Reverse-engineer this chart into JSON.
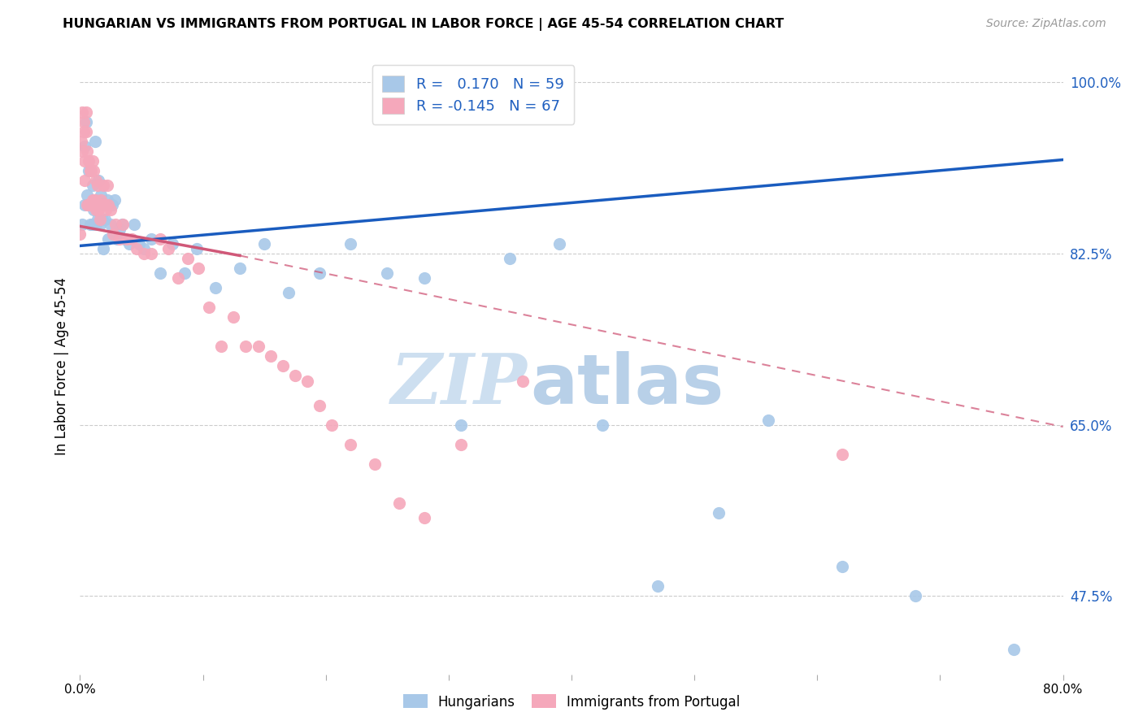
{
  "title": "HUNGARIAN VS IMMIGRANTS FROM PORTUGAL IN LABOR FORCE | AGE 45-54 CORRELATION CHART",
  "source": "Source: ZipAtlas.com",
  "ylabel": "In Labor Force | Age 45-54",
  "yticks": [
    0.475,
    0.65,
    0.825,
    1.0
  ],
  "ytick_labels": [
    "47.5%",
    "65.0%",
    "82.5%",
    "100.0%"
  ],
  "xlim": [
    0.0,
    0.8
  ],
  "ylim": [
    0.395,
    1.025
  ],
  "blue_R": 0.17,
  "blue_N": 59,
  "pink_R": -0.145,
  "pink_N": 67,
  "blue_color": "#a8c8e8",
  "pink_color": "#f5a8bb",
  "blue_line_color": "#1a5cbf",
  "pink_line_color": "#d05878",
  "legend_blue_label": "Hungarians",
  "legend_pink_label": "Immigrants from Portugal",
  "blue_line": [
    0.0,
    0.833,
    0.8,
    0.921
  ],
  "pink_line_solid": [
    0.0,
    0.853,
    0.13,
    0.823
  ],
  "pink_line_dash": [
    0.13,
    0.823,
    0.8,
    0.648
  ],
  "blue_x": [
    0.002,
    0.004,
    0.004,
    0.005,
    0.006,
    0.007,
    0.008,
    0.009,
    0.01,
    0.01,
    0.011,
    0.012,
    0.012,
    0.013,
    0.014,
    0.015,
    0.015,
    0.016,
    0.017,
    0.018,
    0.019,
    0.02,
    0.021,
    0.022,
    0.023,
    0.025,
    0.026,
    0.028,
    0.03,
    0.032,
    0.034,
    0.036,
    0.04,
    0.044,
    0.048,
    0.052,
    0.058,
    0.065,
    0.075,
    0.085,
    0.095,
    0.11,
    0.13,
    0.15,
    0.17,
    0.195,
    0.22,
    0.25,
    0.28,
    0.31,
    0.35,
    0.39,
    0.425,
    0.47,
    0.52,
    0.56,
    0.62,
    0.68,
    0.76
  ],
  "blue_y": [
    0.855,
    0.875,
    0.935,
    0.96,
    0.885,
    0.91,
    0.855,
    0.875,
    0.895,
    0.855,
    0.87,
    0.94,
    0.88,
    0.855,
    0.86,
    0.9,
    0.875,
    0.855,
    0.885,
    0.86,
    0.83,
    0.86,
    0.875,
    0.88,
    0.84,
    0.855,
    0.875,
    0.88,
    0.84,
    0.85,
    0.855,
    0.84,
    0.835,
    0.855,
    0.835,
    0.83,
    0.84,
    0.805,
    0.835,
    0.805,
    0.83,
    0.79,
    0.81,
    0.835,
    0.785,
    0.805,
    0.835,
    0.805,
    0.8,
    0.65,
    0.82,
    0.835,
    0.65,
    0.485,
    0.56,
    0.655,
    0.505,
    0.475,
    0.42
  ],
  "pink_x": [
    0.0,
    0.001,
    0.002,
    0.002,
    0.003,
    0.003,
    0.004,
    0.004,
    0.005,
    0.005,
    0.006,
    0.006,
    0.007,
    0.007,
    0.008,
    0.008,
    0.009,
    0.01,
    0.01,
    0.011,
    0.012,
    0.013,
    0.013,
    0.014,
    0.015,
    0.015,
    0.016,
    0.017,
    0.018,
    0.019,
    0.02,
    0.021,
    0.022,
    0.023,
    0.025,
    0.027,
    0.029,
    0.032,
    0.035,
    0.038,
    0.042,
    0.046,
    0.052,
    0.058,
    0.065,
    0.072,
    0.08,
    0.088,
    0.096,
    0.105,
    0.115,
    0.125,
    0.135,
    0.145,
    0.155,
    0.165,
    0.175,
    0.185,
    0.195,
    0.205,
    0.22,
    0.24,
    0.26,
    0.28,
    0.31,
    0.36,
    0.62
  ],
  "pink_y": [
    0.845,
    0.94,
    0.93,
    0.97,
    0.96,
    0.95,
    0.92,
    0.9,
    0.97,
    0.95,
    0.93,
    0.875,
    0.92,
    0.875,
    0.91,
    0.875,
    0.91,
    0.92,
    0.88,
    0.91,
    0.88,
    0.9,
    0.87,
    0.895,
    0.875,
    0.87,
    0.86,
    0.88,
    0.875,
    0.895,
    0.875,
    0.87,
    0.895,
    0.875,
    0.87,
    0.845,
    0.855,
    0.84,
    0.855,
    0.84,
    0.84,
    0.83,
    0.825,
    0.825,
    0.84,
    0.83,
    0.8,
    0.82,
    0.81,
    0.77,
    0.73,
    0.76,
    0.73,
    0.73,
    0.72,
    0.71,
    0.7,
    0.695,
    0.67,
    0.65,
    0.63,
    0.61,
    0.57,
    0.555,
    0.63,
    0.695,
    0.62
  ]
}
